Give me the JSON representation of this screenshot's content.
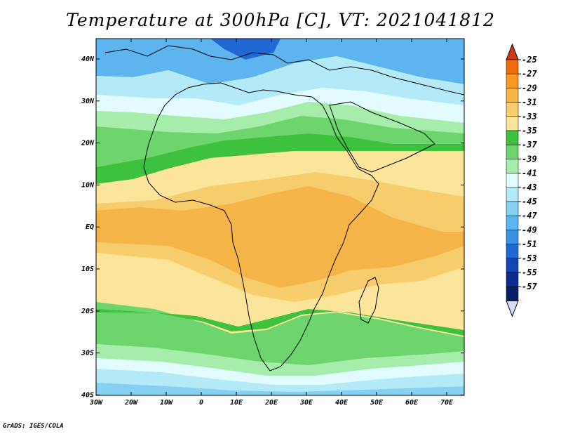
{
  "title": "Temperature at 300hPa [C], VT: 2021041812",
  "credit": "GrADS: IGES/COLA",
  "map": {
    "lon_ticks": [
      "30W",
      "20W",
      "10W",
      "0",
      "10E",
      "20E",
      "30E",
      "40E",
      "50E",
      "60E",
      "70E"
    ],
    "lat_ticks": [
      "40N",
      "30N",
      "20N",
      "10N",
      "EQ",
      "10S",
      "20S",
      "30S",
      "40S"
    ],
    "lon_range": [
      -30,
      75
    ],
    "lat_range": [
      -40,
      45
    ]
  },
  "colorbar": {
    "labels": [
      "-25",
      "-27",
      "-29",
      "-31",
      "-33",
      "-35",
      "-37",
      "-39",
      "-41",
      "-43",
      "-45",
      "-47",
      "-49",
      "-51",
      "-53",
      "-55",
      "-57"
    ],
    "colors": [
      "#d23a0e",
      "#f06a10",
      "#f79a1f",
      "#f5b447",
      "#f7cc6c",
      "#fae59a",
      "#3ec13e",
      "#6ed56e",
      "#a6ecaa",
      "#e2fbfe",
      "#b4eaf8",
      "#86d0f4",
      "#5eb4ee",
      "#3c92e2",
      "#2168d4",
      "#1447b2",
      "#0d2d8e",
      "#081e66",
      "#d8dcfc"
    ]
  }
}
